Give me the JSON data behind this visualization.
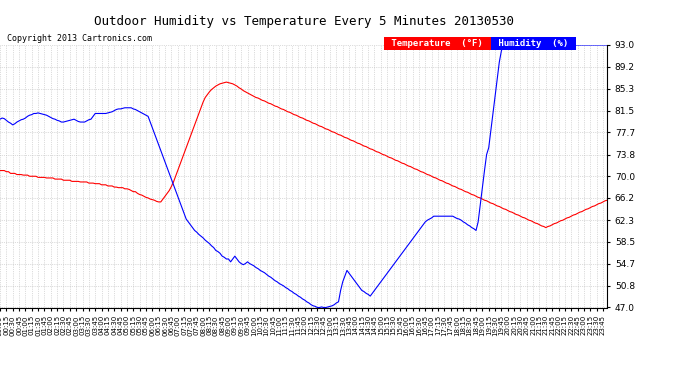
{
  "title": "Outdoor Humidity vs Temperature Every 5 Minutes 20130530",
  "copyright": "Copyright 2013 Cartronics.com",
  "background_color": "#ffffff",
  "plot_bg_color": "#ffffff",
  "grid_color": "#bbbbbb",
  "temp_color": "#ff0000",
  "humidity_color": "#0000ff",
  "y_ticks": [
    47.0,
    50.8,
    54.7,
    58.5,
    62.3,
    66.2,
    70.0,
    73.8,
    77.7,
    81.5,
    85.3,
    89.2,
    93.0
  ],
  "ylim": [
    47.0,
    93.0
  ],
  "legend_temp_label": "Temperature  (°F)",
  "legend_humidity_label": "Humidity  (%)",
  "temp_data": [
    71.0,
    71.0,
    71.0,
    70.8,
    70.8,
    70.5,
    70.5,
    70.5,
    70.3,
    70.3,
    70.3,
    70.2,
    70.2,
    70.2,
    70.0,
    70.0,
    70.0,
    70.0,
    69.8,
    69.8,
    69.8,
    69.8,
    69.7,
    69.7,
    69.7,
    69.7,
    69.5,
    69.5,
    69.5,
    69.5,
    69.3,
    69.3,
    69.3,
    69.3,
    69.1,
    69.1,
    69.1,
    69.1,
    69.0,
    69.0,
    69.0,
    69.0,
    68.8,
    68.8,
    68.8,
    68.7,
    68.7,
    68.7,
    68.5,
    68.5,
    68.5,
    68.3,
    68.3,
    68.3,
    68.1,
    68.1,
    68.0,
    68.0,
    68.0,
    67.8,
    67.8,
    67.7,
    67.5,
    67.3,
    67.3,
    67.0,
    66.8,
    66.7,
    66.5,
    66.3,
    66.2,
    66.0,
    65.9,
    65.8,
    65.6,
    65.5,
    65.5,
    66.0,
    66.5,
    67.0,
    67.5,
    68.2,
    69.0,
    70.0,
    71.0,
    72.0,
    73.0,
    74.0,
    75.0,
    76.0,
    77.0,
    78.0,
    79.0,
    80.0,
    81.0,
    82.0,
    83.0,
    83.8,
    84.3,
    84.8,
    85.2,
    85.5,
    85.8,
    86.0,
    86.2,
    86.3,
    86.4,
    86.5,
    86.4,
    86.3,
    86.2,
    86.0,
    85.8,
    85.5,
    85.3,
    85.0,
    84.8,
    84.6,
    84.4,
    84.2,
    84.0,
    83.8,
    83.7,
    83.5,
    83.3,
    83.2,
    83.0,
    82.8,
    82.7,
    82.5,
    82.3,
    82.2,
    82.0,
    81.8,
    81.7,
    81.5,
    81.3,
    81.2,
    81.0,
    80.8,
    80.7,
    80.5,
    80.3,
    80.2,
    80.0,
    79.8,
    79.7,
    79.5,
    79.3,
    79.2,
    79.0,
    78.8,
    78.7,
    78.5,
    78.3,
    78.2,
    78.0,
    77.8,
    77.7,
    77.5,
    77.3,
    77.2,
    77.0,
    76.8,
    76.7,
    76.5,
    76.3,
    76.2,
    76.0,
    75.8,
    75.7,
    75.5,
    75.3,
    75.2,
    75.0,
    74.8,
    74.7,
    74.5,
    74.3,
    74.2,
    74.0,
    73.8,
    73.7,
    73.5,
    73.3,
    73.2,
    73.0,
    72.8,
    72.7,
    72.5,
    72.3,
    72.2,
    72.0,
    71.8,
    71.7,
    71.5,
    71.3,
    71.2,
    71.0,
    70.8,
    70.7,
    70.5,
    70.3,
    70.2,
    70.0,
    69.8,
    69.7,
    69.5,
    69.3,
    69.2,
    69.0,
    68.8,
    68.7,
    68.5,
    68.3,
    68.2,
    68.0,
    67.8,
    67.7,
    67.5,
    67.3,
    67.2,
    67.0,
    66.8,
    66.7,
    66.5,
    66.3,
    66.2,
    66.0,
    65.8,
    65.7,
    65.5,
    65.3,
    65.2,
    65.0,
    64.8,
    64.7,
    64.5,
    64.3,
    64.2,
    64.0,
    63.8,
    63.7,
    63.5,
    63.3,
    63.2,
    63.0,
    62.8,
    62.7,
    62.5,
    62.3,
    62.2,
    62.0,
    61.8,
    61.7,
    61.5,
    61.3,
    61.2,
    61.0,
    61.2,
    61.3,
    61.5,
    61.7,
    61.8,
    62.0,
    62.2,
    62.3,
    62.5,
    62.7,
    62.8,
    63.0,
    63.2,
    63.3,
    63.5,
    63.7,
    63.8,
    64.0,
    64.2,
    64.3,
    64.5,
    64.7,
    64.8,
    65.0,
    65.2,
    65.3,
    65.5,
    65.7,
    65.8,
    66.0,
    66.2
  ],
  "humidity_data": [
    80.0,
    80.2,
    80.1,
    79.8,
    79.5,
    79.3,
    79.0,
    79.2,
    79.5,
    79.7,
    79.9,
    80.0,
    80.2,
    80.5,
    80.7,
    80.8,
    81.0,
    81.0,
    81.1,
    81.0,
    80.9,
    80.8,
    80.7,
    80.5,
    80.3,
    80.1,
    80.0,
    79.8,
    79.7,
    79.5,
    79.5,
    79.6,
    79.7,
    79.8,
    79.9,
    80.0,
    79.8,
    79.6,
    79.5,
    79.5,
    79.5,
    79.7,
    79.9,
    80.0,
    80.5,
    81.0,
    81.0,
    81.0,
    81.0,
    81.0,
    81.0,
    81.1,
    81.2,
    81.3,
    81.5,
    81.7,
    81.8,
    81.8,
    81.9,
    82.0,
    82.0,
    82.0,
    82.0,
    81.8,
    81.7,
    81.5,
    81.3,
    81.1,
    80.9,
    80.7,
    80.5,
    79.5,
    78.5,
    77.5,
    76.5,
    75.5,
    74.5,
    73.5,
    72.5,
    71.5,
    70.5,
    69.5,
    68.5,
    67.5,
    66.5,
    65.5,
    64.5,
    63.5,
    62.5,
    62.0,
    61.5,
    61.0,
    60.5,
    60.2,
    59.8,
    59.5,
    59.2,
    58.8,
    58.5,
    58.2,
    57.8,
    57.5,
    57.0,
    56.8,
    56.5,
    56.0,
    55.8,
    55.5,
    55.5,
    55.0,
    55.5,
    56.0,
    55.5,
    55.0,
    54.7,
    54.5,
    54.7,
    55.0,
    54.7,
    54.5,
    54.3,
    54.0,
    53.8,
    53.5,
    53.3,
    53.1,
    52.8,
    52.5,
    52.3,
    52.0,
    51.7,
    51.5,
    51.2,
    51.0,
    50.8,
    50.5,
    50.3,
    50.0,
    49.8,
    49.5,
    49.3,
    49.0,
    48.8,
    48.5,
    48.3,
    48.0,
    47.8,
    47.5,
    47.3,
    47.2,
    47.0,
    47.0,
    47.1,
    47.0,
    47.0,
    47.1,
    47.2,
    47.3,
    47.5,
    47.8,
    48.0,
    50.0,
    51.5,
    52.5,
    53.5,
    53.0,
    52.5,
    52.0,
    51.5,
    51.0,
    50.5,
    50.0,
    49.8,
    49.5,
    49.3,
    49.0,
    49.5,
    50.0,
    50.5,
    51.0,
    51.5,
    52.0,
    52.5,
    53.0,
    53.5,
    54.0,
    54.5,
    55.0,
    55.5,
    56.0,
    56.5,
    57.0,
    57.5,
    58.0,
    58.5,
    59.0,
    59.5,
    60.0,
    60.5,
    61.0,
    61.5,
    62.0,
    62.3,
    62.5,
    62.7,
    63.0,
    63.0,
    63.0,
    63.0,
    63.0,
    63.0,
    63.0,
    63.0,
    63.0,
    63.0,
    62.8,
    62.6,
    62.5,
    62.3,
    62.0,
    61.8,
    61.5,
    61.3,
    61.0,
    60.8,
    60.5,
    62.0,
    65.0,
    68.0,
    71.0,
    73.8,
    75.0,
    78.0,
    81.0,
    84.0,
    87.0,
    90.0,
    92.0,
    93.0,
    93.0,
    93.0,
    93.0,
    93.0,
    93.0,
    93.0,
    93.0,
    93.0,
    93.0,
    93.0,
    93.0,
    93.0,
    93.0,
    93.0,
    93.0,
    93.0,
    93.0,
    93.0,
    93.0,
    93.0,
    93.0,
    93.0,
    93.0,
    93.0,
    93.0,
    93.0,
    93.0,
    93.0,
    93.0,
    93.0,
    93.0,
    93.0,
    93.0,
    93.0,
    93.0,
    93.0,
    93.0,
    93.0,
    93.0,
    93.0,
    93.0,
    93.0,
    93.0,
    93.0,
    93.0,
    93.0,
    93.0,
    93.0,
    93.0,
    93.0,
    93.0
  ]
}
